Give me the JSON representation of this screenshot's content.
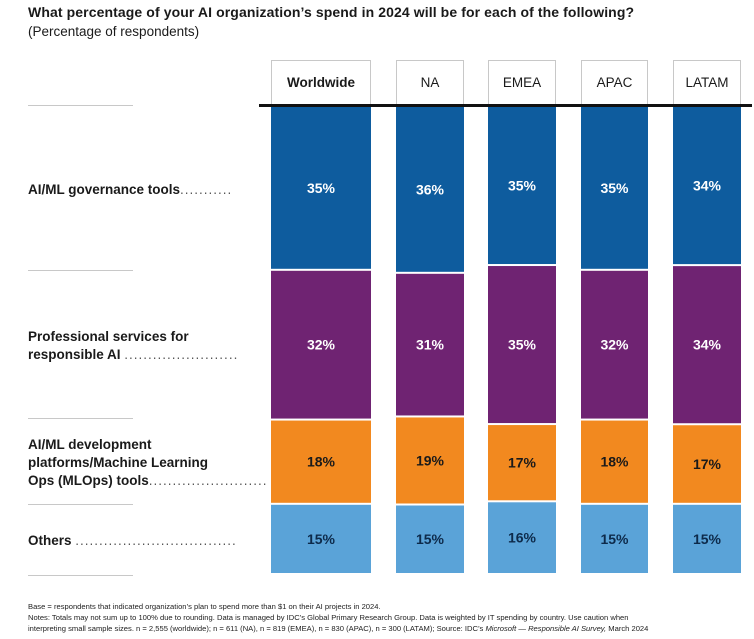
{
  "title": "What percentage of your AI organization’s spend in 2024 will be for each of the following?",
  "subtitle": "(Percentage of respondents)",
  "colors": {
    "governance": "#0e5c9e",
    "professional": "#6f2372",
    "mlops": "#f2891f",
    "others": "#5aa3d8"
  },
  "row_labels": {
    "governance": "AI/ML governance tools",
    "professional_l1": "Professional services for",
    "professional_l2": "responsible AI",
    "mlops_l1": "AI/ML development",
    "mlops_l2": "platforms/Machine Learning",
    "mlops_l3": "Ops (MLOps) tools",
    "others": "Others"
  },
  "dots": {
    "governance": "...........",
    "professional": "........................",
    "mlops": ".........................",
    "others": ".................................."
  },
  "chart_data": {
    "type": "bar",
    "stacked": true,
    "value_format": "percent",
    "categories": [
      "Worldwide",
      "NA",
      "EMEA",
      "APAC",
      "LATAM"
    ],
    "series": [
      {
        "name": "AI/ML governance tools",
        "color": "#0e5c9e",
        "values": [
          35,
          36,
          35,
          35,
          34
        ]
      },
      {
        "name": "Professional services for responsible AI",
        "color": "#6f2372",
        "values": [
          32,
          31,
          35,
          32,
          34
        ]
      },
      {
        "name": "AI/ML development platforms/Machine Learning Ops (MLOps) tools",
        "color": "#f2891f",
        "values": [
          18,
          19,
          17,
          18,
          17
        ]
      },
      {
        "name": "Others",
        "color": "#5aa3d8",
        "values": [
          15,
          15,
          16,
          15,
          15
        ]
      }
    ],
    "data_labels": true,
    "grid": false
  },
  "notes": {
    "line1": "Base = respondents that indicated organization’s plan to spend more than $1 on their AI projects in 2024.",
    "line2": "Notes: Totals may not sum up to 100% due to rounding. Data is managed by IDC’s Global Primary Research Group. Data is weighted by IT spending by country. Use caution when",
    "line3_a": "interpreting small sample sizes. n = 2,555 (worldwide); n = 611 (NA), n = 819 (EMEA), n = 830 (APAC), n = 300 (LATAM); Source: IDC’s",
    "line3_source": "Microsoft — Responsible AI Survey,",
    "line3_b": "March 2024"
  }
}
